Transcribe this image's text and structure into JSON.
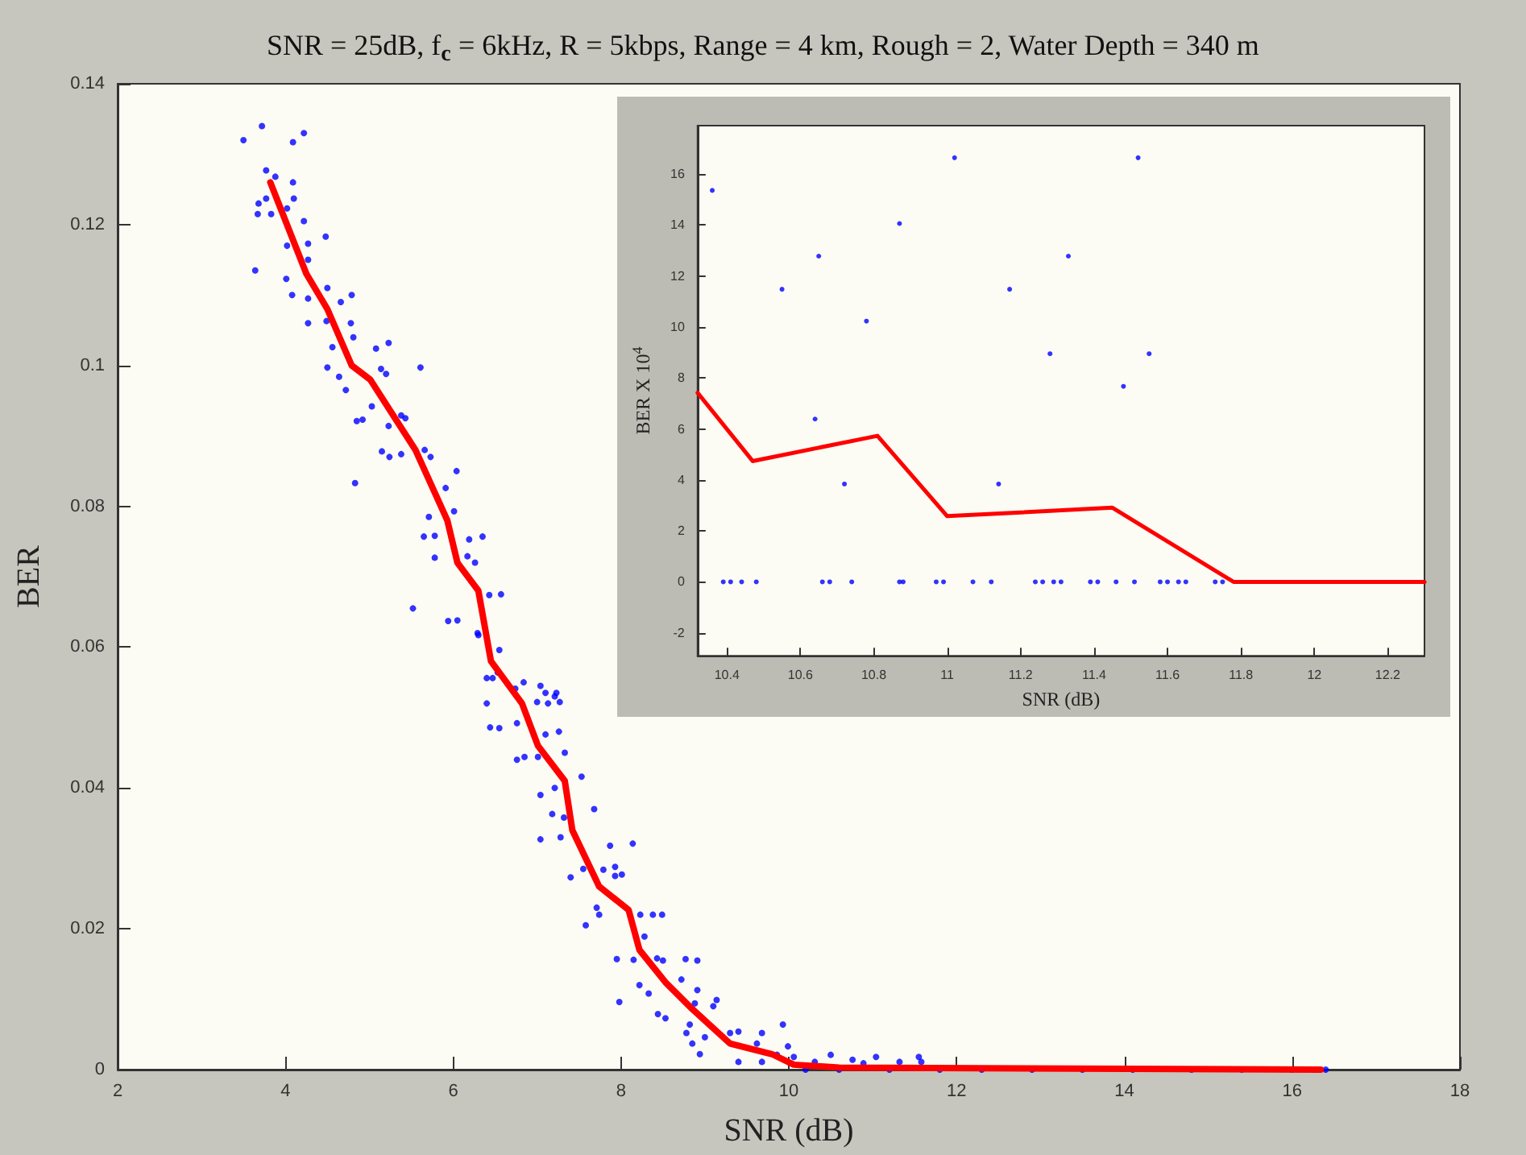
{
  "chart_data": [
    {
      "type": "scatter",
      "title": "SNR = 25dB, f$_{c}$ = 6kHz, R = 5kbps, Range = 4 km, Rough = 2, Water Depth = 340 m",
      "xlabel": "SNR (dB)",
      "ylabel": "BER",
      "xlim": [
        2,
        18
      ],
      "ylim": [
        0,
        0.14
      ],
      "xticks": [
        2,
        4,
        6,
        8,
        10,
        12,
        14,
        16,
        18
      ],
      "yticks": [
        0,
        0.02,
        0.04,
        0.06,
        0.08,
        0.1,
        0.12,
        0.14
      ],
      "series": [
        {
          "color": "#0000ff",
          "marker": "circle",
          "x": [
            3.5,
            3.72,
            4.22,
            4.09,
            3.77,
            3.88,
            4.09,
            3.77,
            4.1,
            3.68,
            3.67,
            3.83,
            4.02,
            4.22,
            4.27,
            4.02,
            4.48,
            3.64,
            4.27,
            4.01,
            4.08,
            4.27,
            4.5,
            4.66,
            4.79,
            4.27,
            4.49,
            4.78,
            4.81,
            4.56,
            5.23,
            5.08,
            5.61,
            4.5,
            4.64,
            5.14,
            5.2,
            4.72,
            5.03,
            4.92,
            4.85,
            5.38,
            5.43,
            5.23,
            5.66,
            5.15,
            5.38,
            5.24,
            5.73,
            6.04,
            4.83,
            5.91,
            6.01,
            5.71,
            5.78,
            5.65,
            6.35,
            6.19,
            6.17,
            5.78,
            6.26,
            6.57,
            6.43,
            5.52,
            5.94,
            6.05,
            6.29,
            6.3,
            6.55,
            6.53,
            6.4,
            6.47,
            6.74,
            6.84,
            7.04,
            7.1,
            7.23,
            7.0,
            7.21,
            6.4,
            6.44,
            6.55,
            6.76,
            7.13,
            7.27,
            7.26,
            7.1,
            6.85,
            6.76,
            7.01,
            7.33,
            7.53,
            7.04,
            7.21,
            7.68,
            7.18,
            7.32,
            7.28,
            7.04,
            7.87,
            8.14,
            7.55,
            7.79,
            7.93,
            8.01,
            7.93,
            7.4,
            7.71,
            7.58,
            7.74,
            8.23,
            8.38,
            8.49,
            8.28,
            7.95,
            8.15,
            8.43,
            8.5,
            8.77,
            8.91,
            8.72,
            8.22,
            8.33,
            7.98,
            8.91,
            9.14,
            9.1,
            8.88,
            8.44,
            8.53,
            8.82,
            8.78,
            9.0,
            8.85,
            8.94,
            9.3,
            9.4,
            9.68,
            9.62,
            9.93,
            9.99,
            9.86,
            9.4,
            9.68,
            10.06,
            10.31,
            10.5,
            10.76,
            11.04,
            11.32,
            11.55,
            11.58,
            10.89,
            10.2,
            10.6,
            11.2,
            11.8,
            12.3,
            12.9,
            13.5,
            14.1,
            14.8,
            15.4,
            16.0,
            16.4
          ],
          "values": [
            0.132,
            0.134,
            0.133,
            0.1317,
            0.1277,
            0.1268,
            0.126,
            0.1237,
            0.1237,
            0.123,
            0.1215,
            0.1215,
            0.1223,
            0.1205,
            0.1173,
            0.117,
            0.1183,
            0.1135,
            0.115,
            0.1123,
            0.11,
            0.1095,
            0.111,
            0.109,
            0.11,
            0.106,
            0.1063,
            0.106,
            0.104,
            0.1026,
            0.1032,
            0.1024,
            0.0997,
            0.0997,
            0.0984,
            0.0995,
            0.0988,
            0.0965,
            0.0942,
            0.0923,
            0.0921,
            0.0929,
            0.0925,
            0.0914,
            0.088,
            0.0878,
            0.0874,
            0.087,
            0.087,
            0.085,
            0.0833,
            0.0826,
            0.0793,
            0.0785,
            0.0758,
            0.0757,
            0.0757,
            0.0753,
            0.0729,
            0.0727,
            0.072,
            0.0675,
            0.0674,
            0.0655,
            0.0637,
            0.0638,
            0.062,
            0.0617,
            0.0596,
            0.0564,
            0.0556,
            0.0556,
            0.0541,
            0.055,
            0.0545,
            0.0535,
            0.0535,
            0.0522,
            0.053,
            0.052,
            0.0486,
            0.0485,
            0.0492,
            0.052,
            0.0522,
            0.048,
            0.0476,
            0.0444,
            0.044,
            0.0444,
            0.045,
            0.0416,
            0.039,
            0.04,
            0.037,
            0.0363,
            0.0358,
            0.033,
            0.0327,
            0.0318,
            0.0321,
            0.0285,
            0.0284,
            0.0288,
            0.0277,
            0.0275,
            0.0273,
            0.023,
            0.0205,
            0.022,
            0.022,
            0.022,
            0.022,
            0.0189,
            0.0157,
            0.0156,
            0.0158,
            0.0155,
            0.0157,
            0.0155,
            0.0128,
            0.012,
            0.0108,
            0.0096,
            0.0113,
            0.0099,
            0.009,
            0.0094,
            0.0079,
            0.0073,
            0.0064,
            0.0052,
            0.0046,
            0.0037,
            0.0022,
            0.0052,
            0.0054,
            0.0052,
            0.0037,
            0.0064,
            0.0033,
            0.0021,
            0.0011,
            0.0011,
            0.0018,
            0.0011,
            0.0021,
            0.0014,
            0.0018,
            0.0011,
            0.0018,
            0.0011,
            0.0009,
            0,
            0,
            0,
            0,
            0,
            0,
            0,
            0,
            0,
            0,
            0,
            0
          ]
        },
        {
          "type": "line",
          "color": "#ff0000",
          "marker": "none",
          "x": [
            3.82,
            4.25,
            4.5,
            4.79,
            5.01,
            5.55,
            5.93,
            6.05,
            6.3,
            6.45,
            6.82,
            7.01,
            7.33,
            7.42,
            7.74,
            8.09,
            8.22,
            8.53,
            8.85,
            9.3,
            9.8,
            10.06,
            10.6,
            16.34
          ],
          "values": [
            0.126,
            0.113,
            0.108,
            0.1,
            0.098,
            0.088,
            0.078,
            0.072,
            0.068,
            0.058,
            0.052,
            0.046,
            0.041,
            0.034,
            0.026,
            0.0227,
            0.017,
            0.0124,
            0.0086,
            0.0037,
            0.0022,
            0.0007,
            0.0003,
            0
          ]
        }
      ]
    },
    {
      "type": "scatter",
      "xlabel": "SNR (dB)",
      "ylabel": "BER X 10$^{4}$",
      "xlim": [
        10.32,
        12.3
      ],
      "ylim": [
        -2.9,
        17.9
      ],
      "xticks": [
        10.4,
        10.6,
        10.8,
        11,
        11.2,
        11.4,
        11.6,
        11.8,
        12,
        12.2
      ],
      "yticks": [
        -2,
        0,
        2,
        4,
        6,
        8,
        10,
        12,
        14,
        16
      ],
      "series": [
        {
          "color": "#0000ff",
          "marker": "circle",
          "x": [
            10.36,
            11.02,
            11.52,
            10.87,
            10.65,
            11.33,
            10.55,
            11.17,
            10.78,
            11.28,
            11.55,
            11.48,
            10.64,
            10.72,
            11.14,
            10.39,
            10.41,
            10.44,
            10.48,
            10.66,
            10.68,
            10.74,
            10.87,
            10.88,
            10.97,
            10.99,
            11.07,
            11.12,
            11.24,
            11.26,
            11.29,
            11.31,
            11.39,
            11.41,
            11.46,
            11.51,
            11.58,
            11.6,
            11.63,
            11.65,
            11.73,
            11.75
          ],
          "values": [
            15.36,
            16.64,
            16.64,
            14.06,
            12.78,
            12.78,
            11.48,
            11.48,
            10.23,
            8.95,
            8.95,
            7.67,
            6.39,
            3.84,
            3.84,
            0,
            0,
            0,
            0,
            0,
            0,
            0,
            0,
            0,
            0,
            0,
            0,
            0,
            0,
            0,
            0,
            0,
            0,
            0,
            0,
            0,
            0,
            0,
            0,
            0,
            0,
            0
          ]
        },
        {
          "type": "line",
          "color": "#ff0000",
          "marker": "none",
          "x": [
            10.32,
            10.47,
            10.81,
            11.0,
            11.45,
            11.78,
            12.3
          ],
          "values": [
            7.42,
            4.74,
            5.73,
            2.58,
            2.91,
            0,
            0
          ]
        }
      ]
    }
  ]
}
